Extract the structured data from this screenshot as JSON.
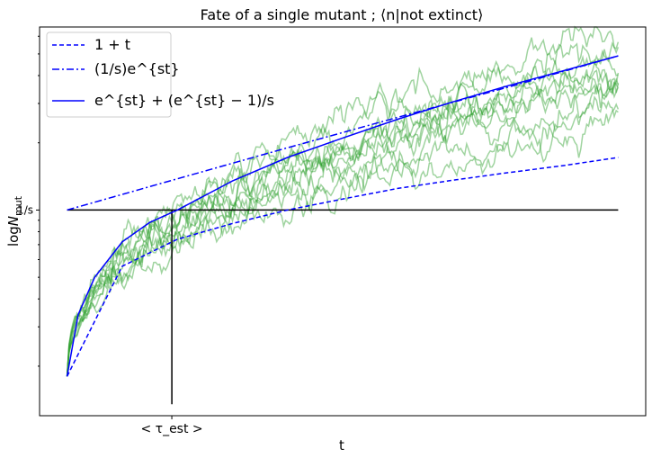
{
  "chart_data": {
    "type": "line",
    "title": "Fate of a single mutant ; ⟨n|not extinct⟩",
    "xlabel": "t",
    "ylabel": "logN_mut",
    "x_ticks": [
      {
        "x": 0.19,
        "label": "< τ_est >"
      }
    ],
    "y_ticks": [
      {
        "y": 1.0,
        "label": "1/s"
      }
    ],
    "y_scale": "log",
    "xlim": [
      -0.05,
      1.05
    ],
    "ylim": [
      0.12,
      6.6
    ],
    "grid": false,
    "legend": {
      "position": "top-left",
      "entries": [
        {
          "label": "1 + t",
          "style": "dashed",
          "color": "#0000ff"
        },
        {
          "label": "(1/s)e^{st}",
          "style": "dashdot",
          "color": "#0000ff"
        },
        {
          "label": "e^{st} + (e^{st} − 1)/s",
          "style": "solid",
          "color": "#0000ff"
        }
      ]
    },
    "series": [
      {
        "label": "1 + t",
        "style": "dashed",
        "color": "#0000ff",
        "x": [
          0.0,
          0.1,
          0.2,
          0.3,
          0.4,
          0.5,
          0.6,
          0.7,
          0.8,
          0.9,
          1.0
        ],
        "y": [
          0.18,
          0.56,
          0.74,
          0.87,
          1.0,
          1.12,
          1.25,
          1.36,
          1.47,
          1.58,
          1.72
        ]
      },
      {
        "label": "(1/s)e^{st}",
        "style": "dashdot",
        "color": "#0000ff",
        "x": [
          0.0,
          0.2,
          0.4,
          0.6,
          0.8,
          1.0
        ],
        "y": [
          1.0,
          1.38,
          1.9,
          2.6,
          3.55,
          4.9
        ]
      },
      {
        "label": "e^{st} + (e^{st} − 1)/s",
        "style": "solid",
        "color": "#0000ff",
        "x": [
          0.0,
          0.02,
          0.05,
          0.1,
          0.15,
          0.2,
          0.3,
          0.4,
          0.5,
          0.6,
          0.7,
          0.8,
          0.9,
          1.0
        ],
        "y": [
          0.18,
          0.34,
          0.5,
          0.72,
          0.88,
          1.0,
          1.35,
          1.72,
          2.1,
          2.55,
          3.05,
          3.6,
          4.2,
          4.9
        ]
      },
      {
        "label": "1/s level",
        "style": "solid",
        "color": "#000000",
        "x": [
          0.0,
          1.0
        ],
        "y": [
          1.0,
          1.0
        ]
      },
      {
        "label": "τ_est marker",
        "style": "solid",
        "color": "#000000",
        "x": [
          0.19,
          0.19
        ],
        "y": [
          0.135,
          1.0
        ]
      }
    ],
    "trajectories": {
      "color": "#2ca02c",
      "alpha": 0.45,
      "count": 10,
      "x_range": [
        0.0,
        1.0
      ],
      "start_y": 0.18,
      "end_y": [
        6.6,
        5.4,
        4.6,
        3.8,
        3.6,
        4.5,
        3.9,
        3.1,
        2.4,
        2.7
      ]
    }
  }
}
